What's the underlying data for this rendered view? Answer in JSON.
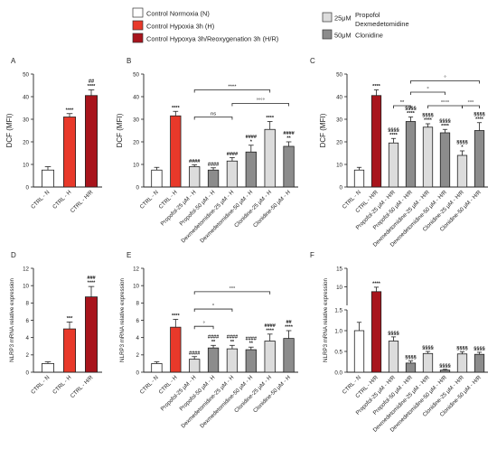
{
  "legend_top": {
    "items": [
      {
        "label": "Control Normoxia (N)",
        "color": "#ffffff"
      },
      {
        "label": "Control Hypoxia 3h (H)",
        "color": "#e8392a"
      },
      {
        "label": "Control Hypoxya 3h/Reoxygenation 3h (H/R)",
        "color": "#a8141c"
      }
    ],
    "dose_items": [
      {
        "dose": "25μM",
        "color": "#dcdcdc",
        "drugs": [
          "Propofol",
          "Dexmedetomidine"
        ]
      },
      {
        "dose": "50μM",
        "color": "#8c8c8c",
        "drugs": [
          "Clonidine"
        ]
      }
    ]
  },
  "chart_data": [
    {
      "panel": "A",
      "type": "bar",
      "ylabel": "DCF (MFI)",
      "ylim": [
        0,
        50
      ],
      "yticks": [
        0,
        10,
        20,
        30,
        40,
        50
      ],
      "categories": [
        "CTRL - N",
        "CTRL - H",
        "CTRL - H/R"
      ],
      "values": [
        7.5,
        31,
        40.5
      ],
      "errors": [
        1.5,
        1.5,
        2.5
      ],
      "colors": [
        "#ffffff",
        "#e8392a",
        "#a8141c"
      ],
      "annotations": [
        "",
        "****",
        "##\n****"
      ],
      "brackets": []
    },
    {
      "panel": "B",
      "type": "bar",
      "ylabel": "DCF (MFI)",
      "ylim": [
        0,
        50
      ],
      "yticks": [
        0,
        10,
        20,
        30,
        40,
        50
      ],
      "categories": [
        "CTRL - N",
        "CTRL - H",
        "Propofol-25 μM - H",
        "Propofol-50 μM - H",
        "Dexmedetomidine-25 μM - H",
        "Dexmedetomidine-50 μM - H",
        "Clonidine-25 μM - H",
        "Clonidine-50 μM - H"
      ],
      "values": [
        7.5,
        31.5,
        9,
        7.5,
        11.5,
        15.5,
        25.5,
        18
      ],
      "errors": [
        1.2,
        2,
        0.8,
        1,
        1.5,
        3,
        3.5,
        2
      ],
      "colors": [
        "#ffffff",
        "#e8392a",
        "#dcdcdc",
        "#8c8c8c",
        "#dcdcdc",
        "#8c8c8c",
        "#dcdcdc",
        "#8c8c8c"
      ],
      "annotations": [
        "",
        "****",
        "####",
        "####",
        "####",
        "####\n*",
        "****",
        "####\n**"
      ],
      "brackets": [
        {
          "from": 2,
          "to": 6,
          "label": "****",
          "y": 43
        },
        {
          "from": 4,
          "to": 7,
          "label": "°°°°",
          "y": 37
        },
        {
          "from": 2,
          "to": 4,
          "label": "ns",
          "y": 31
        }
      ]
    },
    {
      "panel": "C",
      "type": "bar",
      "ylabel": "DCF (MFI)",
      "ylim": [
        0,
        50
      ],
      "yticks": [
        0,
        10,
        20,
        30,
        40,
        50
      ],
      "categories": [
        "CTRL - N",
        "CTRL - H/R",
        "Propofol-25 μM - H/R",
        "Propofol-50 μM - H/R",
        "Dexmedetomidine-25 μM - H/R",
        "Dexmedetomidine-50 μM - H/R",
        "Clonidine-25 μM - H/R",
        "Clonidine-50 μM - H/R"
      ],
      "values": [
        7.5,
        40.5,
        19.5,
        29,
        26.5,
        24,
        14,
        25
      ],
      "errors": [
        1.2,
        2.5,
        2,
        2,
        1.5,
        1.5,
        2,
        3.5
      ],
      "colors": [
        "#ffffff",
        "#a8141c",
        "#dcdcdc",
        "#8c8c8c",
        "#dcdcdc",
        "#8c8c8c",
        "#dcdcdc",
        "#8c8c8c"
      ],
      "annotations": [
        "",
        "****",
        "§§§§\n****",
        "§§§§\n****",
        "§§§§\n****",
        "§§§§\n****",
        "§§§§\n*",
        "§§§§\n****"
      ],
      "brackets": [
        {
          "from": 3,
          "to": 7,
          "label": "°",
          "y": 47
        },
        {
          "from": 3,
          "to": 5,
          "label": "°",
          "y": 42
        },
        {
          "from": 4,
          "to": 6,
          "label": "°°°°",
          "y": 36
        },
        {
          "from": 2,
          "to": 3,
          "label": "**",
          "y": 36
        },
        {
          "from": 6,
          "to": 7,
          "label": "°°°",
          "y": 36
        }
      ]
    },
    {
      "panel": "D",
      "type": "bar",
      "ylabel": "NLRP3 mRNA relative expression",
      "ylim": [
        0,
        12
      ],
      "yticks": [
        0,
        2,
        4,
        6,
        8,
        10,
        12
      ],
      "categories": [
        "CTRL - N",
        "CTRL - H",
        "CTRL - H/R"
      ],
      "values": [
        1,
        5,
        8.7
      ],
      "errors": [
        0.2,
        0.8,
        1.2
      ],
      "colors": [
        "#ffffff",
        "#e8392a",
        "#a8141c"
      ],
      "annotations": [
        "",
        "***",
        "###\n****"
      ],
      "brackets": []
    },
    {
      "panel": "E",
      "type": "bar",
      "ylabel": "NLRP3 mRNA relative expression",
      "ylim": [
        0,
        12
      ],
      "yticks": [
        0,
        2,
        4,
        6,
        8,
        10,
        12
      ],
      "categories": [
        "CTRL - N",
        "CTRL - H",
        "Propofol-25 μM - H",
        "Propofol-50 μM - H",
        "Dexmedetomidine-25 μM - H",
        "Dexmedetomidine-50 μM - H",
        "Clonidine-25 μM - H",
        "Clonidine-50 μM - H"
      ],
      "values": [
        1,
        5.2,
        1.5,
        2.8,
        2.7,
        2.6,
        3.6,
        3.9
      ],
      "errors": [
        0.2,
        0.9,
        0.3,
        0.3,
        0.4,
        0.3,
        0.8,
        0.9
      ],
      "colors": [
        "#ffffff",
        "#e8392a",
        "#dcdcdc",
        "#8c8c8c",
        "#dcdcdc",
        "#8c8c8c",
        "#dcdcdc",
        "#8c8c8c"
      ],
      "annotations": [
        "",
        "****",
        "####",
        "####\n**",
        "####\n**",
        "####\n**",
        "####\n****",
        "##\n****"
      ],
      "brackets": [
        {
          "from": 2,
          "to": 6,
          "label": "°°°",
          "y": 9.3
        },
        {
          "from": 2,
          "to": 4,
          "label": "°",
          "y": 7.3
        },
        {
          "from": 2,
          "to": 3,
          "label": "°",
          "y": 5.3
        }
      ]
    },
    {
      "panel": "F",
      "type": "bar",
      "ylabel": "NLRP3 mRNA relative expression",
      "ylim": [
        0,
        15
      ],
      "broken_axis": true,
      "yticks": [
        0,
        0.5,
        1.0,
        1.5,
        10,
        15
      ],
      "ytick_labels": [
        "0.0",
        "0.5",
        "1.0",
        "1.5",
        "10",
        "15"
      ],
      "categories": [
        "CTRL - N",
        "CTRL - H/R",
        "Propofol-25 μM - H/R",
        "Propofol-50 μM - H/R",
        "Dexmedetomidine-25 μM - H/R",
        "Dexmedetomidine-50 μM - H/R",
        "Clonidine-25 μM - H/R",
        "Clonidine-50 μM - H/R"
      ],
      "values": [
        1.0,
        8.7,
        0.75,
        0.22,
        0.45,
        0.05,
        0.44,
        0.43
      ],
      "errors": [
        0.2,
        1.2,
        0.1,
        0.05,
        0.05,
        0.02,
        0.05,
        0.05
      ],
      "colors": [
        "#ffffff",
        "#a8141c",
        "#dcdcdc",
        "#8c8c8c",
        "#dcdcdc",
        "#8c8c8c",
        "#dcdcdc",
        "#8c8c8c"
      ],
      "annotations": [
        "",
        "****",
        "§§§§",
        "§§§§",
        "§§§§",
        "§§§§",
        "§§§§",
        "§§§§"
      ],
      "brackets": []
    }
  ]
}
